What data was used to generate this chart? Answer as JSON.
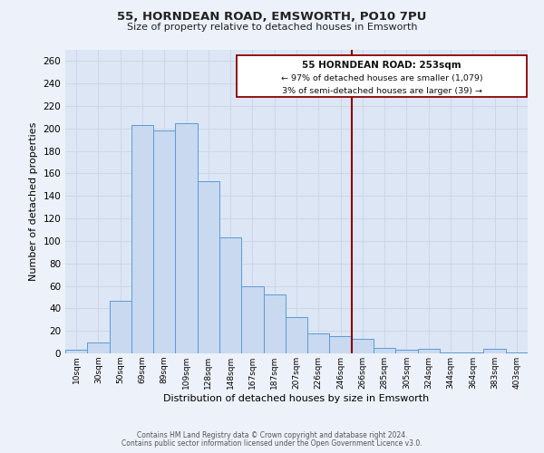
{
  "title": "55, HORNDEAN ROAD, EMSWORTH, PO10 7PU",
  "subtitle": "Size of property relative to detached houses in Emsworth",
  "xlabel": "Distribution of detached houses by size in Emsworth",
  "ylabel": "Number of detached properties",
  "bar_labels": [
    "10sqm",
    "30sqm",
    "50sqm",
    "69sqm",
    "89sqm",
    "109sqm",
    "128sqm",
    "148sqm",
    "167sqm",
    "187sqm",
    "207sqm",
    "226sqm",
    "246sqm",
    "266sqm",
    "285sqm",
    "305sqm",
    "324sqm",
    "344sqm",
    "364sqm",
    "383sqm",
    "403sqm"
  ],
  "bar_values": [
    3,
    10,
    47,
    203,
    198,
    205,
    153,
    103,
    60,
    52,
    32,
    18,
    15,
    13,
    5,
    3,
    4,
    1,
    1,
    4,
    1
  ],
  "bar_color": "#c9d9f0",
  "bar_edge_color": "#5b9bd5",
  "vline_color": "#8b0000",
  "annotation_title": "55 HORNDEAN ROAD: 253sqm",
  "annotation_line1": "← 97% of detached houses are smaller (1,079)",
  "annotation_line2": "3% of semi-detached houses are larger (39) →",
  "annotation_box_color": "#ffffff",
  "annotation_box_edge": "#8b0000",
  "grid_color": "#cdd6e8",
  "background_color": "#dce6f5",
  "fig_background_color": "#edf1f9",
  "ylim": [
    0,
    270
  ],
  "yticks": [
    0,
    20,
    40,
    60,
    80,
    100,
    120,
    140,
    160,
    180,
    200,
    220,
    240,
    260
  ],
  "footer_line1": "Contains HM Land Registry data © Crown copyright and database right 2024.",
  "footer_line2": "Contains public sector information licensed under the Open Government Licence v3.0."
}
